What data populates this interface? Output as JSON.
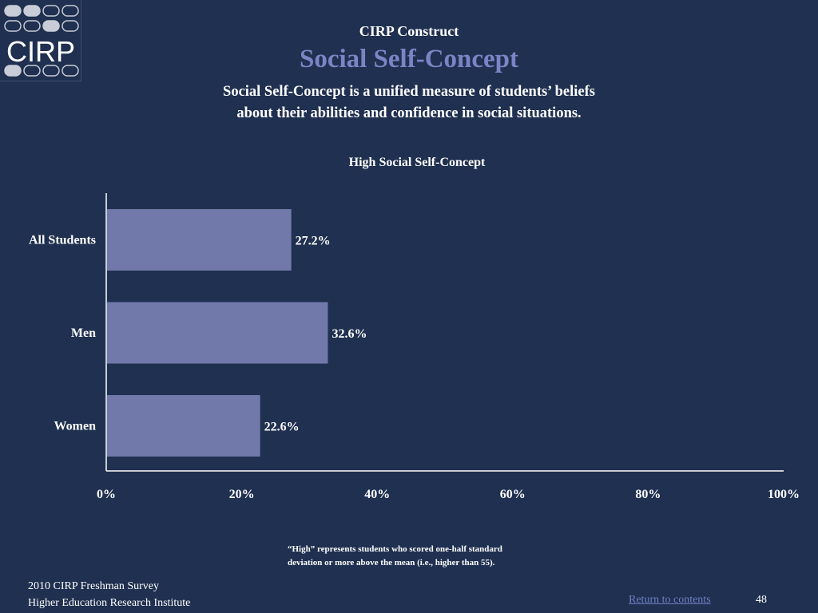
{
  "logo": {
    "text": "CIRP"
  },
  "header": {
    "kicker": "CIRP Construct",
    "title": "Social Self-Concept",
    "description_line1": "Social Self-Concept is a unified measure of students’ beliefs",
    "description_line2": "about their abilities and confidence in social situations."
  },
  "chart_data": {
    "type": "bar",
    "orientation": "horizontal",
    "title": "High Social Self-Concept",
    "categories": [
      "All Students",
      "Men",
      "Women"
    ],
    "values": [
      27.2,
      32.6,
      22.6
    ],
    "value_labels": [
      "27.2%",
      "32.6%",
      "22.6%"
    ],
    "xlim": [
      0,
      100
    ],
    "xticks": [
      "0%",
      "20%",
      "40%",
      "60%",
      "80%",
      "100%"
    ],
    "xtick_values": [
      0,
      20,
      40,
      60,
      80,
      100
    ],
    "grid": false,
    "legend": "none",
    "bar_color": "#7179ab"
  },
  "footnote": {
    "line1": "“High” represents students who scored one-half standard",
    "line2": "deviation or more above the mean (i.e., higher than 55)."
  },
  "footer": {
    "source_line1": "2010 CIRP Freshman Survey",
    "source_line2": "Higher Education Research Institute",
    "return_link": "Return to contents",
    "page_number": "48"
  },
  "colors": {
    "background": "#1f3050",
    "accent_title": "#7b84c4",
    "link": "#6f7fc4"
  }
}
